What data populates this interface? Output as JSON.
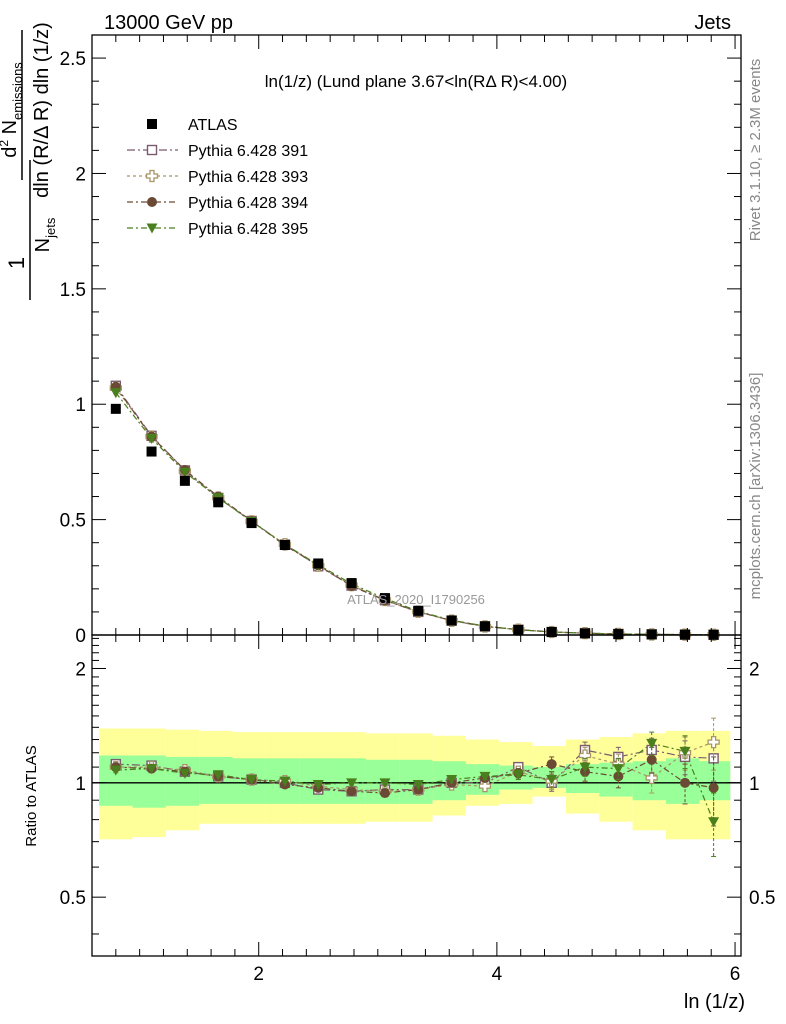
{
  "header": {
    "left": "13000 GeV pp",
    "right": "Jets"
  },
  "side_texts": {
    "rivet": "Rivet 3.1.10, ≥ 2.3M events",
    "mcplots": "mcplots.cern.ch [arXiv:1306.3436]"
  },
  "watermark": "ATLAS_2020_I1790256",
  "chart_data": [
    {
      "type": "scatter",
      "title": "ln(1/z) (Lund plane 3.67<ln(RΔ R)<4.00)",
      "ylabel": "1/N_jets d²N_emissions / dln(R/ΔR) dln(1/z)",
      "ylim": [
        0,
        2.6
      ],
      "y_ticks": [
        "2.5",
        "2",
        "1.5",
        "1",
        "0.5",
        "0"
      ],
      "xlim": [
        0.6,
        6.05
      ],
      "legend_position": "top-left",
      "x": [
        0.8,
        1.1,
        1.38,
        1.66,
        1.94,
        2.22,
        2.5,
        2.78,
        3.06,
        3.34,
        3.62,
        3.9,
        4.18,
        4.46,
        4.74,
        5.02,
        5.3,
        5.58,
        5.82
      ],
      "series": [
        {
          "name": "ATLAS",
          "color": "#000000",
          "marker": "square-filled",
          "values": [
            0.98,
            0.795,
            0.668,
            0.575,
            0.485,
            0.39,
            0.31,
            0.225,
            0.16,
            0.105,
            0.063,
            0.038,
            0.022,
            0.013,
            0.007,
            0.004,
            0.0025,
            0.0015,
            0.001
          ]
        },
        {
          "name": "Pythia 6.428 391",
          "color": "#7a5c6e",
          "marker": "square-open",
          "dash": "8,3,2,3",
          "values": [
            1.08,
            0.863,
            0.713,
            0.594,
            0.494,
            0.392,
            0.298,
            0.214,
            0.151,
            0.1,
            0.062,
            0.037,
            0.023,
            0.013,
            0.008,
            0.0046,
            0.003,
            0.0017,
            0.0012
          ]
        },
        {
          "name": "Pythia 6.428 393",
          "color": "#a89466",
          "marker": "cross-open",
          "dash": "3,3",
          "values": [
            1.07,
            0.86,
            0.71,
            0.595,
            0.492,
            0.393,
            0.3,
            0.216,
            0.152,
            0.101,
            0.062,
            0.037,
            0.023,
            0.013,
            0.008,
            0.0045,
            0.0025,
            0.0017,
            0.0012
          ]
        },
        {
          "name": "Pythia 6.428 394",
          "color": "#6b4a35",
          "marker": "circle-filled",
          "dash": "6,3,2,3",
          "values": [
            1.075,
            0.86,
            0.715,
            0.6,
            0.494,
            0.388,
            0.302,
            0.212,
            0.15,
            0.1,
            0.063,
            0.038,
            0.023,
            0.014,
            0.0075,
            0.0042,
            0.0029,
            0.0015,
            0.001
          ]
        },
        {
          "name": "Pythia 6.428 395",
          "color": "#4a7f1e",
          "marker": "triangle-down-filled",
          "dash": "6,3,2,3",
          "values": [
            1.05,
            0.852,
            0.705,
            0.595,
            0.492,
            0.392,
            0.304,
            0.222,
            0.158,
            0.103,
            0.064,
            0.039,
            0.023,
            0.013,
            0.0077,
            0.0044,
            0.0029,
            0.0017,
            0.0008
          ]
        }
      ]
    },
    {
      "type": "scatter",
      "ylabel": "Ratio to ATLAS",
      "xlabel": "ln (1/z)",
      "ylim": [
        0.35,
        2.45
      ],
      "y_ticks": [
        "2",
        "1",
        "0.5"
      ],
      "x_ticks": [
        "2",
        "4",
        "6"
      ],
      "xlim": [
        0.6,
        6.05
      ],
      "reference": 1,
      "x": [
        0.8,
        1.1,
        1.38,
        1.66,
        1.94,
        2.22,
        2.5,
        2.78,
        3.06,
        3.34,
        3.62,
        3.9,
        4.18,
        4.46,
        4.74,
        5.02,
        5.3,
        5.58,
        5.82
      ],
      "bin_edges": [
        0.66,
        0.94,
        1.22,
        1.5,
        1.78,
        2.06,
        2.34,
        2.62,
        2.9,
        3.18,
        3.46,
        3.74,
        4.02,
        4.3,
        4.58,
        4.86,
        5.14,
        5.42,
        5.7,
        5.96
      ],
      "band_green": [
        [
          0.87,
          1.18
        ],
        [
          0.86,
          1.18
        ],
        [
          0.87,
          1.17
        ],
        [
          0.88,
          1.17
        ],
        [
          0.88,
          1.16
        ],
        [
          0.88,
          1.16
        ],
        [
          0.88,
          1.16
        ],
        [
          0.88,
          1.16
        ],
        [
          0.88,
          1.15
        ],
        [
          0.88,
          1.15
        ],
        [
          0.9,
          1.14
        ],
        [
          0.93,
          1.12
        ],
        [
          0.96,
          1.11
        ],
        [
          0.97,
          1.1
        ],
        [
          0.94,
          1.12
        ],
        [
          0.92,
          1.13
        ],
        [
          0.9,
          1.14
        ],
        [
          0.88,
          1.16
        ],
        [
          0.9,
          1.14
        ]
      ],
      "band_yellow": [
        [
          0.71,
          1.39
        ],
        [
          0.72,
          1.39
        ],
        [
          0.75,
          1.38
        ],
        [
          0.78,
          1.37
        ],
        [
          0.78,
          1.36
        ],
        [
          0.78,
          1.36
        ],
        [
          0.78,
          1.36
        ],
        [
          0.78,
          1.36
        ],
        [
          0.79,
          1.35
        ],
        [
          0.79,
          1.35
        ],
        [
          0.82,
          1.33
        ],
        [
          0.87,
          1.3
        ],
        [
          0.88,
          1.28
        ],
        [
          0.92,
          1.25
        ],
        [
          0.83,
          1.3
        ],
        [
          0.79,
          1.32
        ],
        [
          0.75,
          1.35
        ],
        [
          0.71,
          1.37
        ],
        [
          0.71,
          1.37
        ]
      ],
      "series": [
        {
          "name": "Pythia 6.428 391",
          "color": "#7a5c6e",
          "marker": "square-open",
          "dash": "8,3,2,3",
          "values": [
            1.12,
            1.11,
            1.07,
            1.04,
            1.02,
            1.0,
            0.96,
            0.95,
            0.96,
            0.96,
            1.0,
            1.0,
            1.1,
            1.0,
            1.22,
            1.17,
            1.22,
            1.17,
            1.16
          ],
          "errors": [
            0.01,
            0.01,
            0.01,
            0.01,
            0.01,
            0.01,
            0.01,
            0.01,
            0.01,
            0.01,
            0.01,
            0.02,
            0.03,
            0.05,
            0.06,
            0.07,
            0.09,
            0.12,
            0.15
          ]
        },
        {
          "name": "Pythia 6.428 393",
          "color": "#a89466",
          "marker": "cross-open",
          "dash": "3,3",
          "values": [
            1.1,
            1.1,
            1.08,
            1.04,
            1.02,
            1.01,
            0.98,
            0.96,
            0.95,
            0.96,
            0.99,
            0.98,
            1.07,
            1.01,
            1.18,
            1.12,
            1.03,
            1.2,
            1.28
          ],
          "errors": [
            0.01,
            0.01,
            0.01,
            0.01,
            0.01,
            0.01,
            0.01,
            0.01,
            0.01,
            0.01,
            0.01,
            0.02,
            0.03,
            0.05,
            0.06,
            0.07,
            0.09,
            0.12,
            0.2
          ]
        },
        {
          "name": "Pythia 6.428 394",
          "color": "#6b4a35",
          "marker": "circle-filled",
          "dash": "6,3,2,3",
          "values": [
            1.1,
            1.09,
            1.07,
            1.04,
            1.02,
            0.99,
            0.97,
            0.95,
            0.94,
            0.96,
            1.0,
            1.03,
            1.06,
            1.12,
            1.07,
            1.04,
            1.15,
            1.0,
            0.97
          ],
          "errors": [
            0.01,
            0.01,
            0.01,
            0.01,
            0.01,
            0.01,
            0.01,
            0.01,
            0.01,
            0.01,
            0.01,
            0.02,
            0.03,
            0.05,
            0.06,
            0.07,
            0.09,
            0.12,
            0.2
          ]
        },
        {
          "name": "Pythia 6.428 395",
          "color": "#4a7f1e",
          "marker": "triangle-down-filled",
          "dash": "6,3,2,3",
          "values": [
            1.08,
            1.09,
            1.06,
            1.05,
            1.02,
            1.01,
            0.99,
            1.0,
            1.0,
            0.99,
            1.02,
            1.04,
            1.05,
            1.02,
            1.1,
            1.09,
            1.27,
            1.21,
            0.79
          ],
          "errors": [
            0.01,
            0.01,
            0.01,
            0.01,
            0.01,
            0.01,
            0.01,
            0.01,
            0.01,
            0.01,
            0.01,
            0.02,
            0.03,
            0.05,
            0.06,
            0.07,
            0.09,
            0.12,
            0.15
          ]
        }
      ]
    }
  ]
}
